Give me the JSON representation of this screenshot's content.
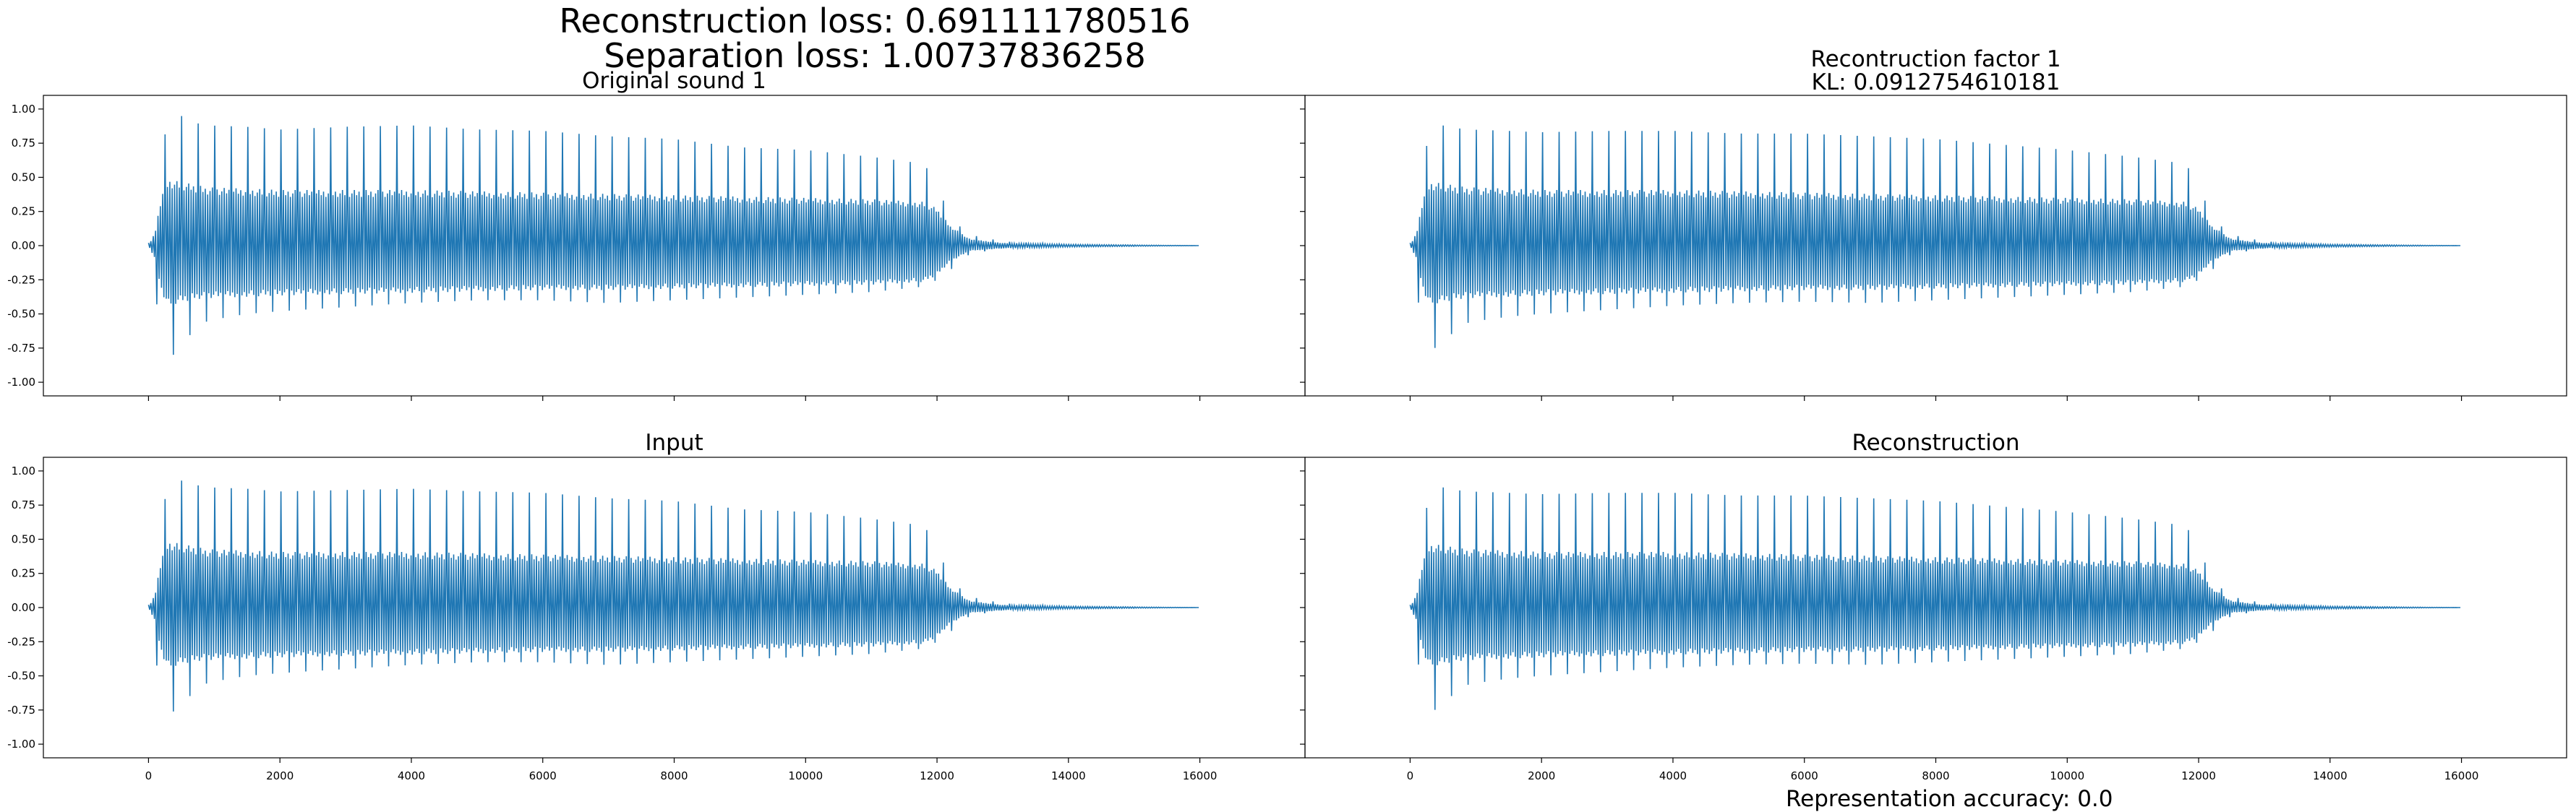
{
  "figure": {
    "suptitle_line1": "Reconstruction loss: 0.691111780516",
    "suptitle_line2": "Separation loss: 1.00737836258",
    "bottom_caption": "Representation accuracy: 0.0"
  },
  "colors": {
    "series": "#1f77b4",
    "axes": "#000000",
    "background": "#ffffff"
  },
  "chart_data": [
    {
      "type": "line",
      "title": "Original sound 1",
      "xlabel": "",
      "ylabel": "",
      "xlim": [
        -1600,
        17600
      ],
      "ylim": [
        -1.1,
        1.1
      ],
      "x_ticks": [
        0,
        2000,
        4000,
        6000,
        8000,
        10000,
        12000,
        14000,
        16000
      ],
      "y_ticks": [
        "-1.00",
        "-0.75",
        "-0.50",
        "-0.25",
        "0.00",
        "0.25",
        "0.50",
        "0.75",
        "1.00"
      ],
      "show_x_tick_labels": false,
      "show_y_tick_labels": true,
      "grid": false,
      "envelope": {
        "x": [
          0,
          100,
          200,
          300,
          500,
          700,
          900,
          1500,
          2000,
          3000,
          4000,
          5000,
          6000,
          7000,
          8000,
          9000,
          10000,
          11000,
          11800,
          12000,
          12200,
          12500,
          13000,
          14000,
          16000
        ],
        "upper": [
          0.02,
          0.15,
          0.7,
          0.92,
          0.95,
          0.9,
          0.88,
          0.87,
          0.85,
          0.87,
          0.88,
          0.85,
          0.84,
          0.8,
          0.78,
          0.72,
          0.7,
          0.65,
          0.6,
          0.45,
          0.2,
          0.08,
          0.03,
          0.01,
          0.0
        ],
        "lower": [
          -0.02,
          -0.3,
          -0.8,
          -0.85,
          -0.72,
          -0.62,
          -0.55,
          -0.5,
          -0.48,
          -0.45,
          -0.42,
          -0.4,
          -0.4,
          -0.42,
          -0.4,
          -0.38,
          -0.36,
          -0.34,
          -0.3,
          -0.25,
          -0.18,
          -0.06,
          -0.02,
          -0.01,
          0.0
        ],
        "core_upper": [
          0.0,
          0.1,
          0.4,
          0.5,
          0.48,
          0.46,
          0.44,
          0.43,
          0.42,
          0.42,
          0.42,
          0.41,
          0.4,
          0.39,
          0.38,
          0.37,
          0.36,
          0.35,
          0.33,
          0.28,
          0.15,
          0.05,
          0.02,
          0.01,
          0.0
        ],
        "core_lower": [
          0.0,
          -0.1,
          -0.35,
          -0.45,
          -0.42,
          -0.4,
          -0.39,
          -0.38,
          -0.37,
          -0.36,
          -0.35,
          -0.34,
          -0.33,
          -0.33,
          -0.32,
          -0.31,
          -0.3,
          -0.29,
          -0.27,
          -0.22,
          -0.12,
          -0.04,
          -0.02,
          -0.01,
          0.0
        ]
      }
    },
    {
      "type": "line",
      "title": "Recontruction factor 1",
      "subtitle": "KL: 0.0912754610181",
      "xlabel": "",
      "ylabel": "",
      "xlim": [
        -1600,
        17600
      ],
      "ylim": [
        -1.1,
        1.1
      ],
      "x_ticks": [
        0,
        2000,
        4000,
        6000,
        8000,
        10000,
        12000,
        14000,
        16000
      ],
      "y_ticks": [
        "-1.00",
        "-0.75",
        "-0.50",
        "-0.25",
        "0.00",
        "0.25",
        "0.50",
        "0.75",
        "1.00"
      ],
      "show_x_tick_labels": false,
      "show_y_tick_labels": false,
      "grid": false,
      "envelope": {
        "x": [
          0,
          100,
          200,
          300,
          500,
          700,
          900,
          1500,
          2000,
          3000,
          4000,
          5000,
          6000,
          7000,
          8000,
          9000,
          10000,
          11000,
          11800,
          12000,
          12200,
          12500,
          13000,
          14000,
          16000
        ],
        "upper": [
          0.02,
          0.15,
          0.6,
          0.85,
          0.88,
          0.86,
          0.85,
          0.84,
          0.83,
          0.84,
          0.84,
          0.82,
          0.82,
          0.8,
          0.78,
          0.74,
          0.7,
          0.65,
          0.6,
          0.45,
          0.2,
          0.08,
          0.03,
          0.01,
          0.0
        ],
        "lower": [
          -0.02,
          -0.3,
          -0.75,
          -0.78,
          -0.7,
          -0.62,
          -0.56,
          -0.52,
          -0.5,
          -0.47,
          -0.44,
          -0.42,
          -0.41,
          -0.42,
          -0.4,
          -0.38,
          -0.36,
          -0.34,
          -0.3,
          -0.25,
          -0.18,
          -0.06,
          -0.02,
          -0.01,
          0.0
        ],
        "core_upper": [
          0.0,
          0.1,
          0.38,
          0.48,
          0.47,
          0.45,
          0.44,
          0.43,
          0.42,
          0.42,
          0.42,
          0.41,
          0.4,
          0.39,
          0.38,
          0.37,
          0.36,
          0.35,
          0.33,
          0.28,
          0.15,
          0.05,
          0.02,
          0.01,
          0.0
        ],
        "core_lower": [
          0.0,
          -0.1,
          -0.34,
          -0.44,
          -0.42,
          -0.4,
          -0.39,
          -0.38,
          -0.37,
          -0.36,
          -0.35,
          -0.34,
          -0.33,
          -0.33,
          -0.32,
          -0.31,
          -0.3,
          -0.29,
          -0.27,
          -0.22,
          -0.12,
          -0.04,
          -0.02,
          -0.01,
          0.0
        ]
      }
    },
    {
      "type": "line",
      "title": "Input",
      "xlabel": "",
      "ylabel": "",
      "xlim": [
        -1600,
        17600
      ],
      "ylim": [
        -1.1,
        1.1
      ],
      "x_ticks": [
        0,
        2000,
        4000,
        6000,
        8000,
        10000,
        12000,
        14000,
        16000
      ],
      "y_ticks": [
        "-1.00",
        "-0.75",
        "-0.50",
        "-0.25",
        "0.00",
        "0.25",
        "0.50",
        "0.75",
        "1.00"
      ],
      "show_x_tick_labels": true,
      "show_y_tick_labels": true,
      "grid": false,
      "envelope": {
        "x": [
          0,
          100,
          200,
          300,
          500,
          700,
          900,
          1500,
          2000,
          3000,
          4000,
          5000,
          6000,
          7000,
          8000,
          9000,
          10000,
          11000,
          11800,
          12000,
          12200,
          12500,
          13000,
          14000,
          16000
        ],
        "upper": [
          0.02,
          0.15,
          0.68,
          0.9,
          0.93,
          0.9,
          0.88,
          0.87,
          0.85,
          0.86,
          0.87,
          0.85,
          0.84,
          0.8,
          0.78,
          0.72,
          0.7,
          0.65,
          0.6,
          0.45,
          0.2,
          0.08,
          0.03,
          0.01,
          0.0
        ],
        "lower": [
          -0.02,
          -0.3,
          -0.78,
          -0.8,
          -0.7,
          -0.62,
          -0.55,
          -0.5,
          -0.48,
          -0.45,
          -0.42,
          -0.4,
          -0.4,
          -0.42,
          -0.4,
          -0.38,
          -0.36,
          -0.34,
          -0.3,
          -0.25,
          -0.18,
          -0.06,
          -0.02,
          -0.01,
          0.0
        ],
        "core_upper": [
          0.0,
          0.1,
          0.4,
          0.5,
          0.48,
          0.46,
          0.44,
          0.43,
          0.42,
          0.42,
          0.42,
          0.41,
          0.4,
          0.39,
          0.38,
          0.37,
          0.36,
          0.35,
          0.33,
          0.28,
          0.15,
          0.05,
          0.02,
          0.01,
          0.0
        ],
        "core_lower": [
          0.0,
          -0.1,
          -0.35,
          -0.45,
          -0.42,
          -0.4,
          -0.39,
          -0.38,
          -0.37,
          -0.36,
          -0.35,
          -0.34,
          -0.33,
          -0.33,
          -0.32,
          -0.31,
          -0.3,
          -0.29,
          -0.27,
          -0.22,
          -0.12,
          -0.04,
          -0.02,
          -0.01,
          0.0
        ]
      }
    },
    {
      "type": "line",
      "title": "Reconstruction",
      "xlabel": "",
      "ylabel": "",
      "xlim": [
        -1600,
        17600
      ],
      "ylim": [
        -1.1,
        1.1
      ],
      "x_ticks": [
        0,
        2000,
        4000,
        6000,
        8000,
        10000,
        12000,
        14000,
        16000
      ],
      "y_ticks": [
        "-1.00",
        "-0.75",
        "-0.50",
        "-0.25",
        "0.00",
        "0.25",
        "0.50",
        "0.75",
        "1.00"
      ],
      "show_x_tick_labels": true,
      "show_y_tick_labels": false,
      "grid": false,
      "envelope": {
        "x": [
          0,
          100,
          200,
          300,
          500,
          700,
          900,
          1500,
          2000,
          3000,
          4000,
          5000,
          6000,
          7000,
          8000,
          9000,
          10000,
          11000,
          11800,
          12000,
          12200,
          12500,
          13000,
          14000,
          16000
        ],
        "upper": [
          0.02,
          0.15,
          0.6,
          0.85,
          0.88,
          0.86,
          0.85,
          0.84,
          0.83,
          0.84,
          0.84,
          0.82,
          0.82,
          0.8,
          0.78,
          0.74,
          0.7,
          0.65,
          0.6,
          0.45,
          0.2,
          0.08,
          0.03,
          0.01,
          0.0
        ],
        "lower": [
          -0.02,
          -0.3,
          -0.75,
          -0.78,
          -0.7,
          -0.62,
          -0.56,
          -0.52,
          -0.5,
          -0.47,
          -0.44,
          -0.42,
          -0.41,
          -0.42,
          -0.4,
          -0.38,
          -0.36,
          -0.34,
          -0.3,
          -0.25,
          -0.18,
          -0.06,
          -0.02,
          -0.01,
          0.0
        ],
        "core_upper": [
          0.0,
          0.1,
          0.38,
          0.48,
          0.47,
          0.45,
          0.44,
          0.43,
          0.42,
          0.42,
          0.42,
          0.41,
          0.4,
          0.39,
          0.38,
          0.37,
          0.36,
          0.35,
          0.33,
          0.28,
          0.15,
          0.05,
          0.02,
          0.01,
          0.0
        ],
        "core_lower": [
          0.0,
          -0.1,
          -0.34,
          -0.44,
          -0.42,
          -0.4,
          -0.39,
          -0.38,
          -0.37,
          -0.36,
          -0.35,
          -0.34,
          -0.33,
          -0.33,
          -0.32,
          -0.31,
          -0.3,
          -0.29,
          -0.27,
          -0.22,
          -0.12,
          -0.04,
          -0.02,
          -0.01,
          0.0
        ]
      }
    }
  ]
}
